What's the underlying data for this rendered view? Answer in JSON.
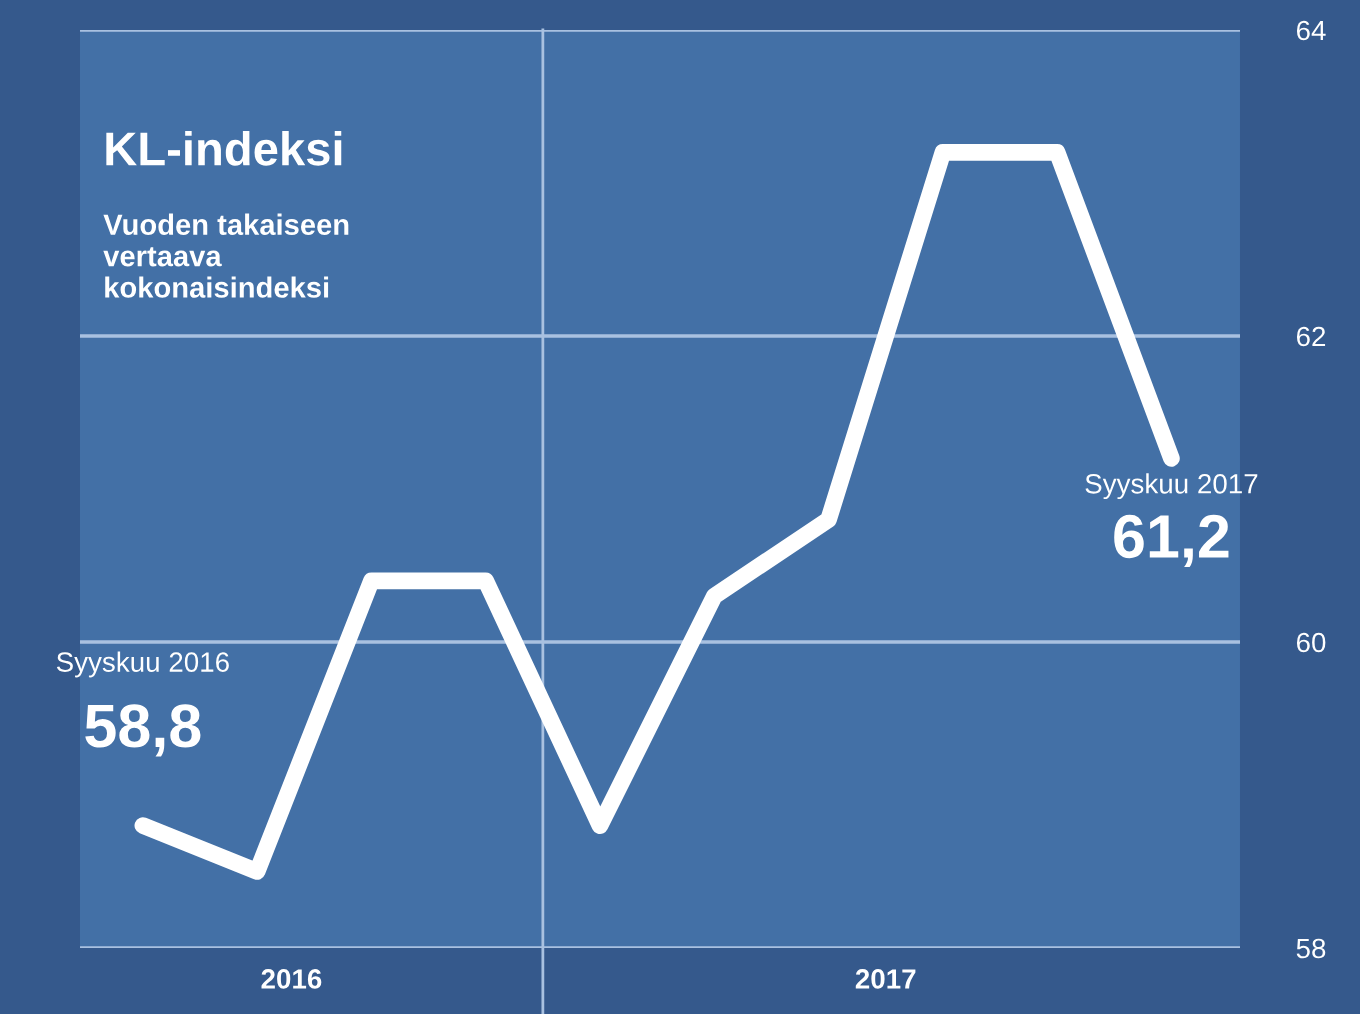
{
  "chart_data": {
    "type": "line",
    "title": "KL-indeksi",
    "subtitle": "Vuoden takaiseen\nvertaava\nkokonaisindeksi",
    "categories": [
      null,
      null,
      null,
      null,
      null,
      null,
      null,
      null,
      null,
      null
    ],
    "series": [
      {
        "color": "#ffffff",
        "values": [
          58.8,
          58.5,
          60.4,
          60.4,
          58.8,
          60.3,
          60.8,
          63.2,
          63.2,
          61.2
        ],
        "value_labels": [
          "58,8",
          null,
          null,
          null,
          null,
          null,
          null,
          null,
          null,
          "61,2"
        ]
      }
    ],
    "annotations": [
      "Syyskuu 2016",
      "Syyskuu 2017",
      "2016",
      "2017"
    ],
    "ylim": [
      58,
      64
    ],
    "yticks": [
      58,
      60,
      62,
      64
    ],
    "grid": "y",
    "legend": false,
    "marker": "none",
    "line_style": "solid"
  }
}
